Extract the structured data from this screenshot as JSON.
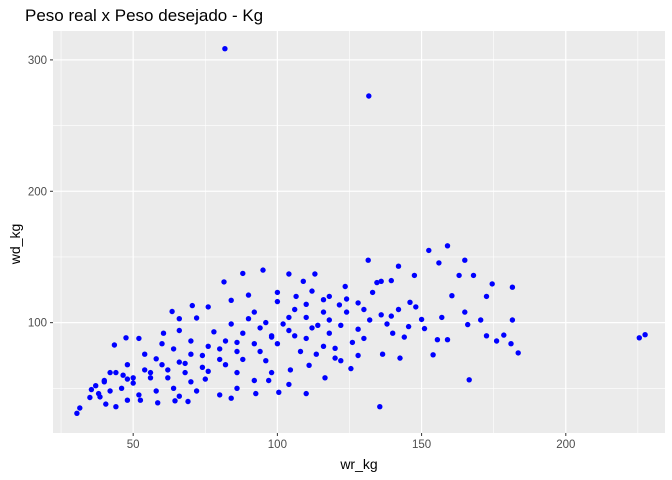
{
  "chart_data": {
    "type": "scatter",
    "title": "Peso real x Peso desejado - Kg",
    "xlabel": "wr_kg",
    "ylabel": "wd_kg",
    "xlim": [
      22.2,
      234.4
    ],
    "ylim": [
      16,
      322
    ],
    "xticks": [
      50,
      100,
      150,
      200
    ],
    "yticks": [
      100,
      200,
      300
    ],
    "grid": true,
    "background": "#EBEBEB",
    "grid_color": "#FFFFFF",
    "point_color": "#0000FF",
    "points": [
      [
        81.8,
        308.5
      ],
      [
        131.7,
        272.5
      ],
      [
        225.5,
        88.5
      ],
      [
        227.5,
        90.8
      ],
      [
        159,
        158.5
      ],
      [
        156,
        145.5
      ],
      [
        152.5,
        155
      ],
      [
        165,
        147.5
      ],
      [
        163,
        136
      ],
      [
        168,
        136
      ],
      [
        147.5,
        136
      ],
      [
        142,
        143
      ],
      [
        139.5,
        132
      ],
      [
        134.5,
        130.5
      ],
      [
        131.5,
        147.5
      ],
      [
        136,
        131.5
      ],
      [
        174.5,
        129.5
      ],
      [
        181.5,
        127
      ],
      [
        172.5,
        120
      ],
      [
        160.5,
        120.5
      ],
      [
        165,
        108
      ],
      [
        170.5,
        102
      ],
      [
        181.5,
        102
      ],
      [
        176,
        86
      ],
      [
        178.5,
        90.5
      ],
      [
        183.5,
        77
      ],
      [
        181,
        84
      ],
      [
        172.5,
        90
      ],
      [
        166,
        98.5
      ],
      [
        159,
        87
      ],
      [
        166.5,
        56.5
      ],
      [
        154,
        75.5
      ],
      [
        155.5,
        87
      ],
      [
        151,
        95.5
      ],
      [
        142.5,
        73
      ],
      [
        136.5,
        76
      ],
      [
        135.5,
        36
      ],
      [
        145.5,
        97
      ],
      [
        139.5,
        105
      ],
      [
        148,
        112
      ],
      [
        144,
        89
      ],
      [
        125.5,
        65
      ],
      [
        128,
        75
      ],
      [
        113.5,
        76
      ],
      [
        95,
        140
      ],
      [
        104,
        137
      ],
      [
        113,
        137
      ],
      [
        88,
        137.5
      ],
      [
        81.5,
        131
      ],
      [
        109,
        131.5
      ],
      [
        106.5,
        120
      ],
      [
        116,
        117.5
      ],
      [
        121.5,
        113.5
      ],
      [
        128,
        115
      ],
      [
        63.5,
        108.5
      ],
      [
        66,
        103
      ],
      [
        70.5,
        113
      ],
      [
        60.5,
        92
      ],
      [
        52,
        88
      ],
      [
        47.5,
        88.5
      ],
      [
        43.5,
        83
      ],
      [
        42,
        62
      ],
      [
        40,
        55
      ],
      [
        37,
        52
      ],
      [
        35.5,
        49
      ],
      [
        35,
        43
      ],
      [
        31.5,
        35
      ],
      [
        30.5,
        31
      ],
      [
        38.5,
        43.5
      ],
      [
        40.5,
        38
      ],
      [
        44,
        36
      ],
      [
        48,
        41
      ],
      [
        52.5,
        41
      ],
      [
        58.5,
        39
      ],
      [
        64.5,
        40.5
      ],
      [
        69,
        40
      ],
      [
        80,
        45
      ],
      [
        92.5,
        46
      ],
      [
        100.5,
        47
      ],
      [
        110,
        46
      ],
      [
        97,
        56
      ],
      [
        104.5,
        64
      ],
      [
        116.5,
        58
      ],
      [
        122,
        71
      ],
      [
        75,
        57
      ],
      [
        58,
        72.5
      ],
      [
        46.5,
        60
      ],
      [
        84,
        42.5
      ],
      [
        104,
        53
      ],
      [
        111,
        67.5
      ],
      [
        120,
        80.5
      ],
      [
        130,
        88
      ],
      [
        138,
        99
      ],
      [
        150,
        102.5
      ],
      [
        157,
        104
      ],
      [
        146,
        115.5
      ],
      [
        133,
        123
      ],
      [
        123.5,
        127.5
      ],
      [
        112,
        124
      ],
      [
        100,
        123
      ],
      [
        90,
        121
      ],
      [
        84,
        117
      ],
      [
        76,
        112
      ],
      [
        72,
        103.5
      ],
      [
        66,
        94
      ],
      [
        60,
        84
      ],
      [
        54,
        76
      ],
      [
        48,
        68
      ],
      [
        44,
        62
      ],
      [
        40,
        56
      ],
      [
        90,
        103
      ],
      [
        94,
        96
      ],
      [
        98,
        89
      ],
      [
        102,
        99
      ],
      [
        106,
        110
      ],
      [
        110,
        104
      ],
      [
        114,
        98
      ],
      [
        118,
        92
      ],
      [
        86,
        85
      ],
      [
        80,
        80
      ],
      [
        74,
        75
      ],
      [
        68,
        69
      ],
      [
        62,
        64
      ],
      [
        56,
        58
      ],
      [
        50,
        54
      ],
      [
        46,
        50
      ],
      [
        82,
        68
      ],
      [
        88,
        72
      ],
      [
        94,
        78
      ],
      [
        100,
        84
      ],
      [
        106,
        90
      ],
      [
        112,
        96
      ],
      [
        118,
        102
      ],
      [
        124,
        108
      ],
      [
        128,
        95
      ],
      [
        126,
        85
      ],
      [
        120,
        73
      ],
      [
        108,
        78
      ],
      [
        96,
        71
      ],
      [
        86,
        62
      ],
      [
        76,
        63
      ],
      [
        70,
        55
      ],
      [
        64,
        50
      ],
      [
        58,
        48
      ],
      [
        52,
        45
      ],
      [
        78,
        93
      ],
      [
        84,
        99
      ],
      [
        92,
        108
      ],
      [
        100,
        116
      ],
      [
        70,
        86
      ],
      [
        64,
        80
      ],
      [
        60,
        68
      ],
      [
        54,
        64
      ],
      [
        48,
        57
      ],
      [
        42,
        48
      ],
      [
        38,
        46
      ],
      [
        86,
        50
      ],
      [
        92,
        56
      ],
      [
        98,
        62
      ],
      [
        72,
        48
      ],
      [
        66,
        44
      ],
      [
        62,
        58
      ],
      [
        68,
        62
      ],
      [
        74,
        66
      ],
      [
        80,
        72
      ],
      [
        86,
        78
      ],
      [
        92,
        84
      ],
      [
        98,
        90
      ],
      [
        104,
        94
      ],
      [
        110,
        88
      ],
      [
        116,
        82
      ],
      [
        122,
        98
      ],
      [
        116,
        108
      ],
      [
        110,
        114
      ],
      [
        104,
        104
      ],
      [
        96,
        100
      ],
      [
        88,
        92
      ],
      [
        82,
        86
      ],
      [
        76,
        82
      ],
      [
        70,
        76
      ],
      [
        66,
        70
      ],
      [
        56,
        62
      ],
      [
        50,
        58
      ],
      [
        136,
        106
      ],
      [
        142,
        110
      ],
      [
        132,
        102
      ],
      [
        140,
        92
      ],
      [
        130,
        110
      ],
      [
        124,
        118
      ],
      [
        118,
        120
      ]
    ]
  }
}
